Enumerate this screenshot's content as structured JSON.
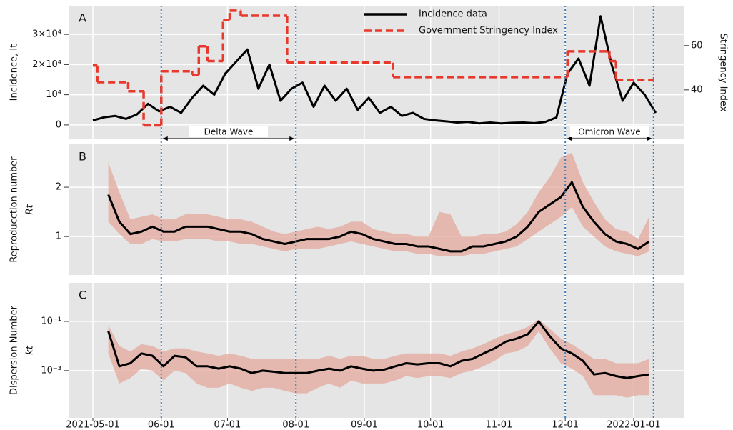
{
  "waves": [
    {
      "label": "Delta Wave",
      "start": "2021-06-01",
      "end": "2021-08-01"
    },
    {
      "label": "Omicron Wave",
      "start": "2021-12-01",
      "end": "2022-01-10"
    }
  ],
  "chart_data": [
    {
      "type": "line",
      "panel_label": "A",
      "ylabel": "Incidence, It",
      "y2label": "Stringency Index",
      "legend": "upper center",
      "ylim": [
        -4760,
        39500
      ],
      "yticks": [
        0,
        {
          "value": 10000,
          "label": "10⁴"
        },
        {
          "value": 20000,
          "label": "2×10⁴"
        },
        {
          "value": 30000,
          "label": "3×10⁴"
        }
      ],
      "y2lim": [
        17.7,
        78
      ],
      "y2ticks": [
        40,
        60
      ],
      "series": [
        {
          "name": "Incidence data",
          "color": "#000000",
          "x": [
            "2021-05-01",
            "2021-05-06",
            "2021-05-11",
            "2021-05-16",
            "2021-05-21",
            "2021-05-26",
            "2021-05-31",
            "2021-06-05",
            "2021-06-10",
            "2021-06-15",
            "2021-06-20",
            "2021-06-25",
            "2021-06-30",
            "2021-07-05",
            "2021-07-10",
            "2021-07-15",
            "2021-07-20",
            "2021-07-25",
            "2021-07-30",
            "2021-08-04",
            "2021-08-09",
            "2021-08-14",
            "2021-08-19",
            "2021-08-24",
            "2021-08-29",
            "2021-09-03",
            "2021-09-08",
            "2021-09-13",
            "2021-09-18",
            "2021-09-23",
            "2021-09-28",
            "2021-10-03",
            "2021-10-08",
            "2021-10-13",
            "2021-10-18",
            "2021-10-23",
            "2021-10-28",
            "2021-11-02",
            "2021-11-07",
            "2021-11-12",
            "2021-11-17",
            "2021-11-22",
            "2021-11-27",
            "2021-12-02",
            "2021-12-07",
            "2021-12-12",
            "2021-12-17",
            "2021-12-22",
            "2021-12-27",
            "2022-01-01",
            "2022-01-06",
            "2022-01-11"
          ],
          "values": [
            1500,
            2500,
            3000,
            2000,
            3500,
            7000,
            4500,
            6000,
            4000,
            9000,
            13000,
            10000,
            17000,
            21000,
            25000,
            12000,
            20000,
            8000,
            12000,
            14000,
            6000,
            13000,
            8000,
            12000,
            5000,
            9000,
            4000,
            6000,
            3000,
            4000,
            2000,
            1500,
            1200,
            800,
            1000,
            500,
            800,
            500,
            700,
            800,
            600,
            1000,
            2500,
            17000,
            22000,
            13000,
            36000,
            20000,
            8000,
            14000,
            10000,
            4000
          ]
        },
        {
          "name": "Government Stringency Index",
          "color": "#e8392c",
          "axis": "y2",
          "step": "post",
          "x": [
            "2021-05-01",
            "2021-05-03",
            "2021-05-17",
            "2021-05-24",
            "2021-06-01",
            "2021-06-15",
            "2021-06-18",
            "2021-06-22",
            "2021-06-29",
            "2021-07-02",
            "2021-07-07",
            "2021-07-28",
            "2021-09-14",
            "2021-12-02",
            "2021-12-21",
            "2021-12-24",
            "2022-01-10"
          ],
          "values": [
            51,
            43.5,
            39.4,
            24,
            48.4,
            46.8,
            59.7,
            53,
            71.6,
            75.8,
            73.5,
            52.3,
            45.8,
            57.4,
            53,
            44.5,
            44.5
          ]
        }
      ]
    },
    {
      "type": "line",
      "panel_label": "B",
      "ylabel": "Reproducction number",
      "ysymbol": "Rt",
      "ylim": [
        0.22,
        2.87
      ],
      "yticks": [
        1,
        2
      ],
      "x": [
        "2021-05-08",
        "2021-05-13",
        "2021-05-18",
        "2021-05-23",
        "2021-05-28",
        "2021-06-02",
        "2021-06-07",
        "2021-06-12",
        "2021-06-17",
        "2021-06-22",
        "2021-06-27",
        "2021-07-02",
        "2021-07-07",
        "2021-07-12",
        "2021-07-17",
        "2021-07-22",
        "2021-07-27",
        "2021-08-01",
        "2021-08-06",
        "2021-08-11",
        "2021-08-16",
        "2021-08-21",
        "2021-08-26",
        "2021-08-31",
        "2021-09-05",
        "2021-09-10",
        "2021-09-15",
        "2021-09-20",
        "2021-09-25",
        "2021-09-30",
        "2021-10-05",
        "2021-10-10",
        "2021-10-15",
        "2021-10-20",
        "2021-10-25",
        "2021-10-30",
        "2021-11-04",
        "2021-11-09",
        "2021-11-14",
        "2021-11-19",
        "2021-11-24",
        "2021-11-29",
        "2021-12-04",
        "2021-12-09",
        "2021-12-14",
        "2021-12-19",
        "2021-12-24",
        "2021-12-29",
        "2022-01-03",
        "2022-01-08"
      ],
      "series": [
        {
          "color": "#000000",
          "band_color": "#e3a89b",
          "values": [
            1.85,
            1.3,
            1.05,
            1.1,
            1.2,
            1.1,
            1.1,
            1.2,
            1.2,
            1.2,
            1.15,
            1.1,
            1.1,
            1.05,
            0.95,
            0.9,
            0.85,
            0.9,
            0.95,
            0.95,
            0.95,
            1.0,
            1.1,
            1.05,
            0.95,
            0.9,
            0.85,
            0.85,
            0.8,
            0.8,
            0.75,
            0.7,
            0.7,
            0.8,
            0.8,
            0.85,
            0.9,
            1.0,
            1.2,
            1.5,
            1.65,
            1.8,
            2.1,
            1.6,
            1.3,
            1.05,
            0.9,
            0.85,
            0.75,
            0.9
          ],
          "lower": [
            1.3,
            1.05,
            0.85,
            0.85,
            0.95,
            0.9,
            0.9,
            0.95,
            0.95,
            0.95,
            0.9,
            0.9,
            0.85,
            0.85,
            0.8,
            0.75,
            0.7,
            0.75,
            0.75,
            0.75,
            0.8,
            0.85,
            0.9,
            0.85,
            0.8,
            0.75,
            0.7,
            0.7,
            0.65,
            0.65,
            0.6,
            0.6,
            0.6,
            0.65,
            0.65,
            0.7,
            0.75,
            0.8,
            0.95,
            1.1,
            1.25,
            1.4,
            1.6,
            1.2,
            1.0,
            0.8,
            0.7,
            0.65,
            0.6,
            0.7
          ],
          "upper": [
            2.5,
            1.9,
            1.35,
            1.4,
            1.45,
            1.35,
            1.35,
            1.45,
            1.45,
            1.45,
            1.4,
            1.35,
            1.35,
            1.3,
            1.2,
            1.1,
            1.05,
            1.1,
            1.15,
            1.2,
            1.15,
            1.2,
            1.3,
            1.3,
            1.15,
            1.1,
            1.05,
            1.05,
            1.0,
            1.0,
            1.5,
            1.45,
            1.0,
            1.0,
            1.05,
            1.05,
            1.1,
            1.25,
            1.5,
            1.9,
            2.2,
            2.6,
            2.7,
            2.1,
            1.7,
            1.35,
            1.15,
            1.1,
            0.95,
            1.4
          ]
        }
      ]
    },
    {
      "type": "line",
      "panel_label": "C",
      "ylabel": "Dispersion Number",
      "ysymbol": "kt",
      "log_y": true,
      "ylim": [
        1.2e-05,
        3.7
      ],
      "yticks": [
        {
          "value": 0.1,
          "label": "10⁻¹"
        },
        {
          "value": 0.001,
          "label": "10⁻³"
        }
      ],
      "xlim": [
        "2021-04-20",
        "2022-01-24"
      ],
      "xticks": [
        "2021-05-01",
        {
          "value": "2021-06-01",
          "label": "06-01"
        },
        {
          "value": "2021-07-01",
          "label": "07-01"
        },
        {
          "value": "2021-08-01",
          "label": "08-01"
        },
        {
          "value": "2021-09-01",
          "label": "09-01"
        },
        {
          "value": "2021-10-01",
          "label": "10-01"
        },
        {
          "value": "2021-11-01",
          "label": "11-01"
        },
        {
          "value": "2021-12-01",
          "label": "12-01"
        },
        "2022-01-01"
      ],
      "x": [
        "2021-05-08",
        "2021-05-13",
        "2021-05-18",
        "2021-05-23",
        "2021-05-28",
        "2021-06-02",
        "2021-06-07",
        "2021-06-12",
        "2021-06-17",
        "2021-06-22",
        "2021-06-27",
        "2021-07-02",
        "2021-07-07",
        "2021-07-12",
        "2021-07-17",
        "2021-07-22",
        "2021-07-27",
        "2021-08-01",
        "2021-08-06",
        "2021-08-11",
        "2021-08-16",
        "2021-08-21",
        "2021-08-26",
        "2021-08-31",
        "2021-09-05",
        "2021-09-10",
        "2021-09-15",
        "2021-09-20",
        "2021-09-25",
        "2021-09-30",
        "2021-10-05",
        "2021-10-10",
        "2021-10-15",
        "2021-10-20",
        "2021-10-25",
        "2021-10-30",
        "2021-11-04",
        "2021-11-09",
        "2021-11-14",
        "2021-11-19",
        "2021-11-24",
        "2021-11-29",
        "2021-12-04",
        "2021-12-09",
        "2021-12-14",
        "2021-12-19",
        "2021-12-24",
        "2021-12-29",
        "2022-01-03",
        "2022-01-08"
      ],
      "series": [
        {
          "color": "#000000",
          "band_color": "#e3a89b",
          "values": [
            0.04,
            0.0015,
            0.002,
            0.005,
            0.004,
            0.0015,
            0.004,
            0.0035,
            0.0015,
            0.0015,
            0.0012,
            0.0015,
            0.0012,
            0.0008,
            0.001,
            0.0009,
            0.0008,
            0.0008,
            0.0008,
            0.001,
            0.0012,
            0.001,
            0.0015,
            0.0012,
            0.001,
            0.0011,
            0.0015,
            0.002,
            0.0018,
            0.002,
            0.002,
            0.0015,
            0.0025,
            0.003,
            0.005,
            0.008,
            0.015,
            0.02,
            0.03,
            0.1,
            0.025,
            0.008,
            0.005,
            0.0025,
            0.0007,
            0.0008,
            0.0006,
            0.0005,
            0.0006,
            0.0007
          ],
          "lower": [
            0.005,
            0.0003,
            0.0005,
            0.0012,
            0.001,
            0.0004,
            0.001,
            0.0008,
            0.0003,
            0.0002,
            0.0002,
            0.0003,
            0.0002,
            0.00015,
            0.0002,
            0.0002,
            0.00015,
            0.00012,
            0.00012,
            0.0002,
            0.0003,
            0.0002,
            0.0004,
            0.0003,
            0.0003,
            0.0003,
            0.0004,
            0.0006,
            0.0005,
            0.0006,
            0.0006,
            0.0005,
            0.0008,
            0.001,
            0.0015,
            0.0025,
            0.005,
            0.006,
            0.01,
            0.04,
            0.008,
            0.002,
            0.0012,
            0.0006,
            0.0001,
            0.0001,
            0.0001,
            8e-05,
            0.0001,
            0.0001
          ],
          "upper": [
            0.07,
            0.01,
            0.006,
            0.012,
            0.01,
            0.006,
            0.008,
            0.008,
            0.006,
            0.005,
            0.004,
            0.005,
            0.004,
            0.003,
            0.003,
            0.003,
            0.003,
            0.003,
            0.003,
            0.003,
            0.004,
            0.003,
            0.004,
            0.004,
            0.003,
            0.003,
            0.004,
            0.005,
            0.005,
            0.005,
            0.005,
            0.004,
            0.006,
            0.008,
            0.012,
            0.02,
            0.03,
            0.04,
            0.06,
            0.12,
            0.05,
            0.02,
            0.012,
            0.006,
            0.003,
            0.003,
            0.002,
            0.002,
            0.002,
            0.003
          ]
        }
      ]
    }
  ]
}
